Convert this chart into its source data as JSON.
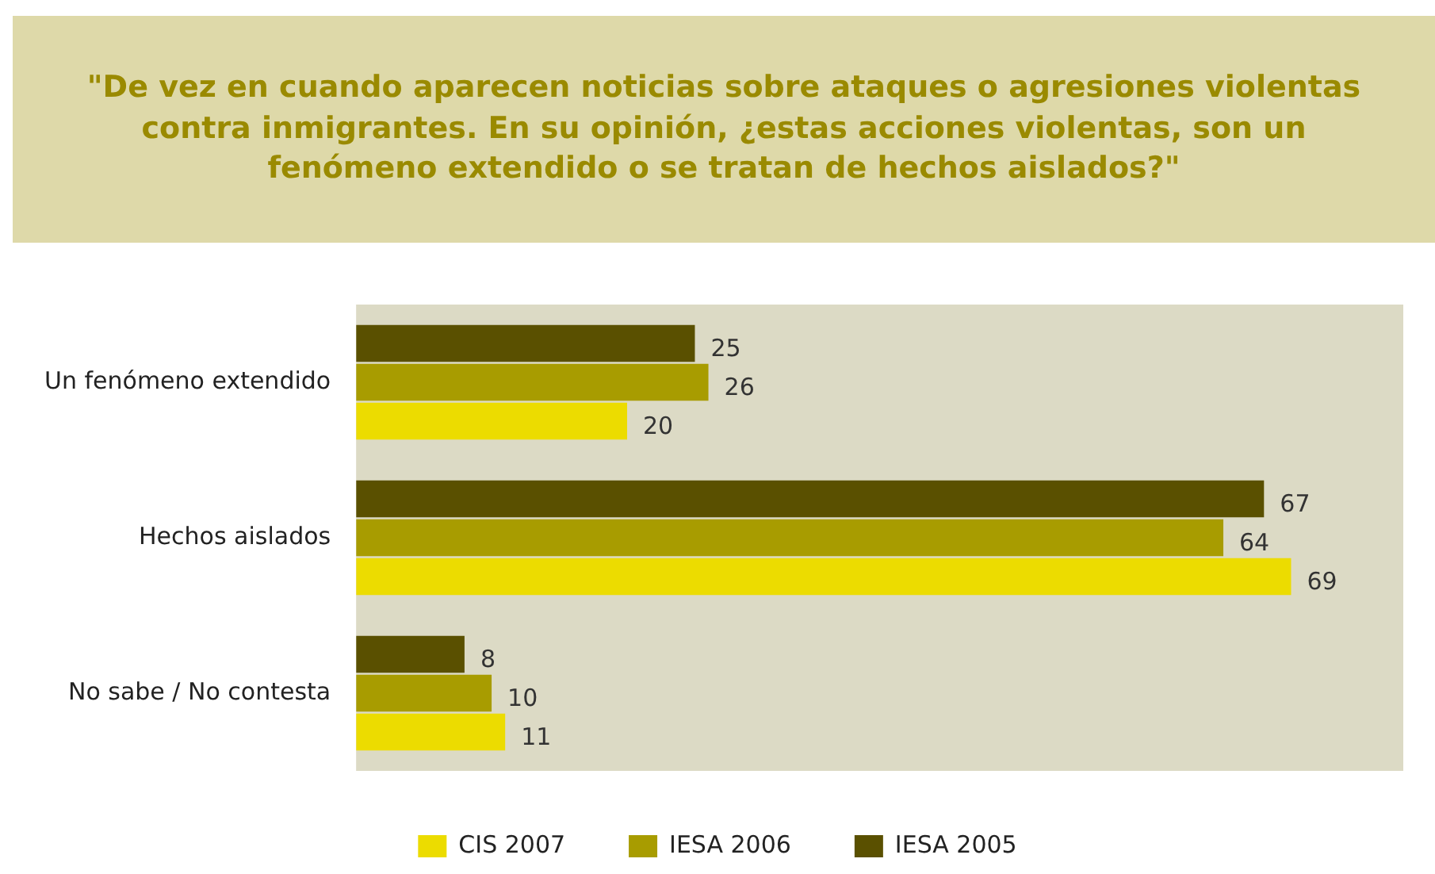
{
  "chart_data": {
    "type": "bar",
    "orientation": "horizontal",
    "title": "\"De vez en cuando aparecen noticias sobre ataques o agresiones violentas contra inmigrantes. En su opinión, ¿estas acciones violentas, son un fenómeno extendido o se tratan de hechos aislados?\"",
    "categories": [
      "Un fenómeno extendido",
      "Hechos aislados",
      "No sabe / No contesta"
    ],
    "series": [
      {
        "name": "IESA 2005",
        "color": "#5a5000",
        "values": [
          25,
          67,
          8
        ]
      },
      {
        "name": "IESA 2006",
        "color": "#a89c00",
        "values": [
          26,
          64,
          10
        ]
      },
      {
        "name": "CIS 2007",
        "color": "#ecdc00",
        "values": [
          20,
          69,
          11
        ]
      }
    ],
    "data_labels": true,
    "legend": "bottom",
    "grid": false
  }
}
